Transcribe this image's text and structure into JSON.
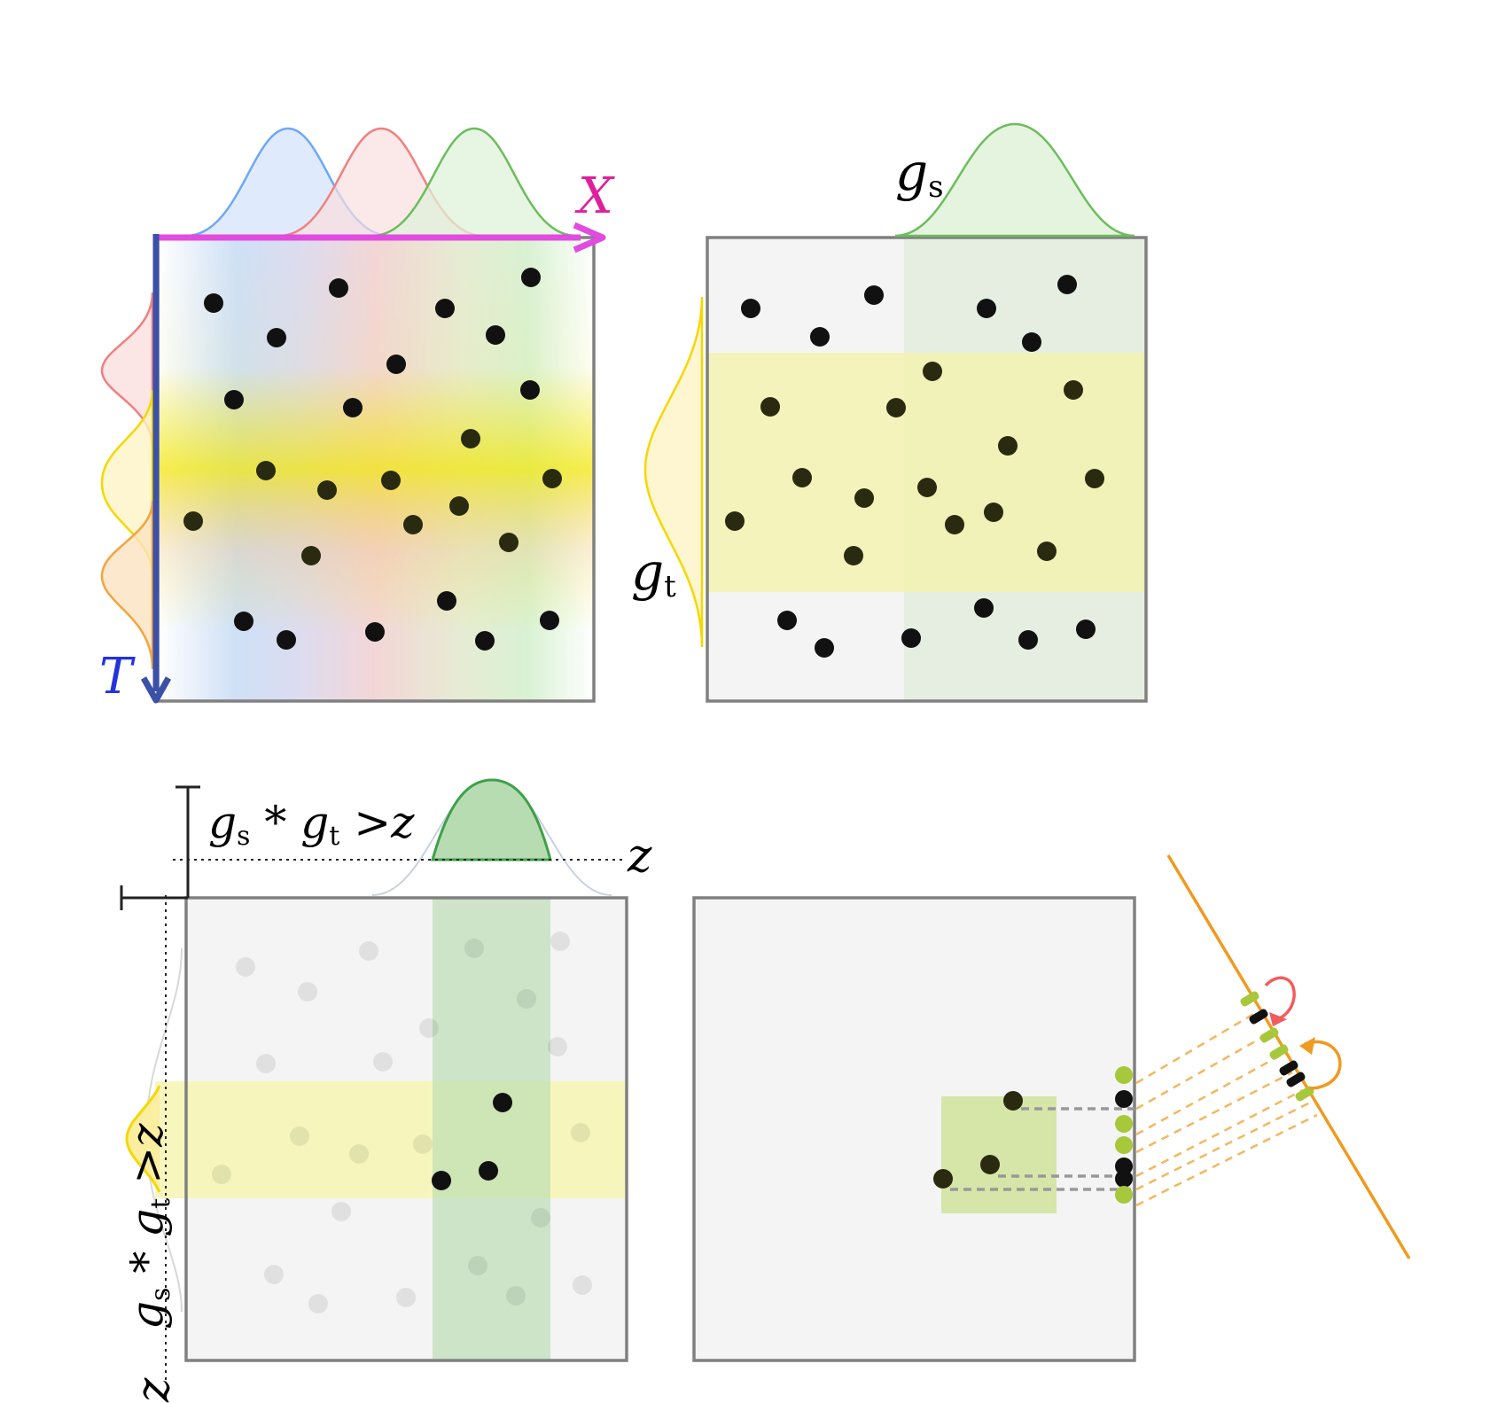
{
  "colors": {
    "blue": "#6ea8f5",
    "red": "#f08080",
    "green": "#6cbd5c",
    "yellow": "#f5d800",
    "orange": "#f3a43d",
    "axis_x": "#e14be0",
    "axis_t": "#3b50a8",
    "label_x": "#e0209a",
    "label_t": "#2233dd",
    "frame": "#808080",
    "dot": "#111111",
    "panel_bg": "#f4f4f4",
    "band_green": "#b8dcb2",
    "band_yellow": "#f2f2a6",
    "node_green": "#a8c83c",
    "timeline": "#f09a20",
    "arc_red": "#f25c5c"
  },
  "axes": {
    "x": "X",
    "t": "T"
  },
  "kernels": {
    "gs": {
      "base": "g",
      "sub": "s"
    },
    "gt": {
      "base": "g",
      "sub": "t"
    }
  },
  "threshold": {
    "left": "g",
    "left_sub": "s",
    "op": " * ",
    "right": "g",
    "right_sub": "t",
    "cond": " >z",
    "z": "z"
  }
}
